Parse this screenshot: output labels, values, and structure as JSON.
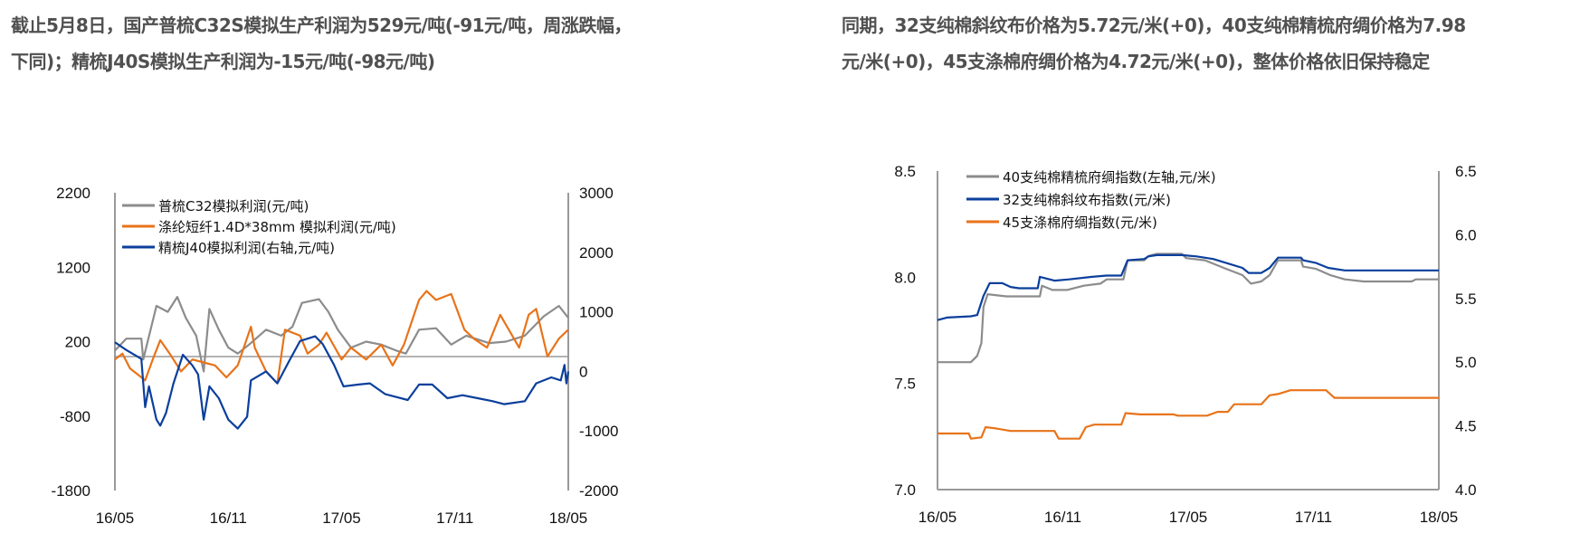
{
  "captions": {
    "left_line1": "截止5月8日，国产普梳C32S模拟生产利润为529元/吨(-91元/吨，周涨跌幅，",
    "left_line2": "下同)；精梳J40S模拟生产利润为-15元/吨(-98元/吨)",
    "right_line1": "同期，32支纯棉斜纹布价格为5.72元/米(+0)，40支纯棉精梳府绸价格为7.98",
    "right_line2": "元/米(+0)，45支涤棉府绸价格为4.72元/米(+0)，整体价格依旧保持稳定"
  },
  "chart_data": [
    {
      "type": "line",
      "title": "",
      "x_unit": "months since 16/05",
      "xlim": [
        0,
        24
      ],
      "x_ticks": [
        {
          "v": 0,
          "label": "16/05"
        },
        {
          "v": 6,
          "label": "16/11"
        },
        {
          "v": 12,
          "label": "17/05"
        },
        {
          "v": 18,
          "label": "17/11"
        },
        {
          "v": 24,
          "label": "18/05"
        }
      ],
      "ylim_left": [
        -1800,
        2200
      ],
      "y_ticks_left": [
        "2200",
        "1200",
        "200",
        "-800",
        "-1800"
      ],
      "ylim_right": [
        -2000,
        3000
      ],
      "y_ticks_right": [
        "3000",
        "2000",
        "1000",
        "0",
        "-1000",
        "-2000"
      ],
      "zero_line_left": 0,
      "legend_position": "top-left",
      "series": [
        {
          "name": "普梳C32模拟利润(元/吨)",
          "axis": "left",
          "color": "#8c8c8c",
          "points": [
            [
              0,
              80
            ],
            [
              0.6,
              240
            ],
            [
              1.4,
              240
            ],
            [
              1.5,
              -40
            ],
            [
              2.2,
              680
            ],
            [
              2.8,
              600
            ],
            [
              3.3,
              800
            ],
            [
              3.75,
              520
            ],
            [
              4.3,
              280
            ],
            [
              4.7,
              -200
            ],
            [
              5.0,
              640
            ],
            [
              5.5,
              360
            ],
            [
              6.0,
              120
            ],
            [
              6.5,
              40
            ],
            [
              7.1,
              160
            ],
            [
              8.0,
              360
            ],
            [
              8.8,
              280
            ],
            [
              9.4,
              400
            ],
            [
              9.9,
              720
            ],
            [
              10.8,
              770
            ],
            [
              11.3,
              600
            ],
            [
              11.8,
              360
            ],
            [
              12.5,
              120
            ],
            [
              13.3,
              200
            ],
            [
              14.1,
              160
            ],
            [
              14.9,
              80
            ],
            [
              15.4,
              40
            ],
            [
              16.1,
              360
            ],
            [
              17.0,
              380
            ],
            [
              17.8,
              160
            ],
            [
              18.6,
              280
            ],
            [
              19.8,
              180
            ],
            [
              20.7,
              200
            ],
            [
              21.7,
              280
            ],
            [
              22.7,
              540
            ],
            [
              23.5,
              680
            ],
            [
              24,
              520
            ]
          ]
        },
        {
          "name": "涤纶短纤1.4D*38mm 模拟利润(元/吨)",
          "axis": "left",
          "color": "#e8731a",
          "points": [
            [
              0,
              -40
            ],
            [
              0.4,
              40
            ],
            [
              0.8,
              -160
            ],
            [
              1.6,
              -320
            ],
            [
              2.0,
              -40
            ],
            [
              2.4,
              220
            ],
            [
              2.9,
              40
            ],
            [
              3.5,
              -200
            ],
            [
              4.1,
              -40
            ],
            [
              4.7,
              -80
            ],
            [
              5.3,
              -120
            ],
            [
              5.9,
              -280
            ],
            [
              6.5,
              -120
            ],
            [
              7.2,
              400
            ],
            [
              7.4,
              120
            ],
            [
              8.0,
              -200
            ],
            [
              8.6,
              -360
            ],
            [
              9.0,
              360
            ],
            [
              9.8,
              280
            ],
            [
              10.2,
              40
            ],
            [
              10.8,
              160
            ],
            [
              11.2,
              320
            ],
            [
              12.0,
              -40
            ],
            [
              12.5,
              120
            ],
            [
              13.3,
              -40
            ],
            [
              14.1,
              160
            ],
            [
              14.7,
              -120
            ],
            [
              15.3,
              160
            ],
            [
              16.1,
              760
            ],
            [
              16.5,
              880
            ],
            [
              17.0,
              760
            ],
            [
              17.8,
              840
            ],
            [
              18.5,
              360
            ],
            [
              19.0,
              240
            ],
            [
              19.7,
              120
            ],
            [
              20.4,
              560
            ],
            [
              21.4,
              120
            ],
            [
              21.9,
              560
            ],
            [
              22.3,
              640
            ],
            [
              22.9,
              0
            ],
            [
              23.5,
              240
            ],
            [
              24,
              360
            ]
          ]
        },
        {
          "name": "精梳J40模拟利润(右轴,元/吨)",
          "axis": "right",
          "color": "#0b3f9c",
          "points": [
            [
              0,
              490
            ],
            [
              0.6,
              360
            ],
            [
              1.4,
              210
            ],
            [
              1.6,
              -600
            ],
            [
              1.8,
              -250
            ],
            [
              2.2,
              -810
            ],
            [
              2.4,
              -910
            ],
            [
              2.7,
              -700
            ],
            [
              3.1,
              -200
            ],
            [
              3.6,
              280
            ],
            [
              4.1,
              100
            ],
            [
              4.4,
              -50
            ],
            [
              4.7,
              -810
            ],
            [
              5.0,
              -250
            ],
            [
              5.5,
              -450
            ],
            [
              6.0,
              -810
            ],
            [
              6.5,
              -960
            ],
            [
              7.0,
              -760
            ],
            [
              7.2,
              -150
            ],
            [
              8.0,
              0
            ],
            [
              8.6,
              -200
            ],
            [
              9.2,
              160
            ],
            [
              9.8,
              510
            ],
            [
              10.6,
              590
            ],
            [
              11.0,
              460
            ],
            [
              11.6,
              110
            ],
            [
              12.1,
              -250
            ],
            [
              12.9,
              -220
            ],
            [
              13.5,
              -200
            ],
            [
              14.3,
              -380
            ],
            [
              14.9,
              -430
            ],
            [
              15.5,
              -480
            ],
            [
              16.1,
              -220
            ],
            [
              16.8,
              -220
            ],
            [
              17.6,
              -450
            ],
            [
              18.4,
              -400
            ],
            [
              19.2,
              -450
            ],
            [
              20.0,
              -500
            ],
            [
              20.6,
              -550
            ],
            [
              21.7,
              -500
            ],
            [
              22.3,
              -200
            ],
            [
              23.1,
              -100
            ],
            [
              23.6,
              -150
            ],
            [
              23.8,
              110
            ],
            [
              23.9,
              -200
            ],
            [
              24,
              0
            ]
          ]
        }
      ]
    },
    {
      "type": "line",
      "title": "",
      "x_unit": "months since 16/05",
      "xlim": [
        0,
        24
      ],
      "x_ticks": [
        {
          "v": 0,
          "label": "16/05"
        },
        {
          "v": 6,
          "label": "16/11"
        },
        {
          "v": 12,
          "label": "17/05"
        },
        {
          "v": 18,
          "label": "17/11"
        },
        {
          "v": 24,
          "label": "18/05"
        }
      ],
      "ylim_left": [
        7.0,
        8.5
      ],
      "y_ticks_left": [
        "8.5",
        "8.0",
        "7.5",
        "7.0"
      ],
      "ylim_right": [
        4.0,
        6.5
      ],
      "y_ticks_right": [
        "6.5",
        "6.0",
        "5.5",
        "5.0",
        "4.5",
        "4.0"
      ],
      "legend_position": "top-left",
      "series": [
        {
          "name": "40支纯棉精梳府绸指数(左轴,元/米)",
          "axis": "left",
          "color": "#8c8c8c",
          "points": [
            [
              0,
              7.6
            ],
            [
              1.6,
              7.6
            ],
            [
              1.9,
              7.63
            ],
            [
              2.1,
              7.69
            ],
            [
              2.2,
              7.86
            ],
            [
              2.4,
              7.92
            ],
            [
              3.3,
              7.91
            ],
            [
              3.5,
              7.91
            ],
            [
              4.9,
              7.91
            ],
            [
              5.0,
              7.96
            ],
            [
              5.5,
              7.94
            ],
            [
              6.2,
              7.94
            ],
            [
              7.0,
              7.96
            ],
            [
              7.8,
              7.97
            ],
            [
              8.1,
              7.99
            ],
            [
              8.9,
              7.99
            ],
            [
              9.1,
              8.08
            ],
            [
              9.9,
              8.08
            ],
            [
              10.1,
              8.1
            ],
            [
              10.5,
              8.11
            ],
            [
              11.7,
              8.11
            ],
            [
              11.9,
              8.09
            ],
            [
              12.8,
              8.08
            ],
            [
              13.8,
              8.04
            ],
            [
              14.6,
              8.01
            ],
            [
              15.0,
              7.97
            ],
            [
              15.5,
              7.98
            ],
            [
              15.9,
              8.01
            ],
            [
              16.3,
              8.08
            ],
            [
              17.4,
              8.08
            ],
            [
              17.5,
              8.05
            ],
            [
              18.1,
              8.04
            ],
            [
              18.8,
              8.01
            ],
            [
              19.5,
              7.99
            ],
            [
              20.4,
              7.98
            ],
            [
              22.7,
              7.98
            ],
            [
              22.9,
              7.99
            ],
            [
              24,
              7.99
            ]
          ]
        },
        {
          "name": "32支纯棉斜纹布指数(元/米)",
          "axis": "right",
          "color": "#0b3f9c",
          "points": [
            [
              0,
              5.33
            ],
            [
              0.45,
              5.35
            ],
            [
              1.6,
              5.36
            ],
            [
              1.9,
              5.37
            ],
            [
              2.2,
              5.52
            ],
            [
              2.5,
              5.62
            ],
            [
              3.1,
              5.62
            ],
            [
              3.5,
              5.59
            ],
            [
              3.9,
              5.58
            ],
            [
              4.8,
              5.58
            ],
            [
              4.9,
              5.67
            ],
            [
              5.6,
              5.64
            ],
            [
              6.3,
              5.65
            ],
            [
              7.4,
              5.67
            ],
            [
              8.1,
              5.68
            ],
            [
              8.8,
              5.68
            ],
            [
              9.1,
              5.8
            ],
            [
              9.9,
              5.81
            ],
            [
              10.1,
              5.83
            ],
            [
              10.5,
              5.84
            ],
            [
              11.7,
              5.84
            ],
            [
              12.4,
              5.83
            ],
            [
              13.2,
              5.81
            ],
            [
              14.0,
              5.77
            ],
            [
              14.6,
              5.74
            ],
            [
              14.9,
              5.7
            ],
            [
              15.5,
              5.7
            ],
            [
              15.9,
              5.74
            ],
            [
              16.3,
              5.82
            ],
            [
              17.4,
              5.82
            ],
            [
              17.5,
              5.8
            ],
            [
              18.1,
              5.78
            ],
            [
              18.7,
              5.74
            ],
            [
              19.5,
              5.72
            ],
            [
              24,
              5.72
            ]
          ]
        },
        {
          "name": "45支涤棉府绸指数(元/米)",
          "axis": "right",
          "color": "#e8731a",
          "points": [
            [
              0,
              4.44
            ],
            [
              1.5,
              4.44
            ],
            [
              1.6,
              4.4
            ],
            [
              2.1,
              4.41
            ],
            [
              2.3,
              4.49
            ],
            [
              2.8,
              4.48
            ],
            [
              3.5,
              4.46
            ],
            [
              5.6,
              4.46
            ],
            [
              5.8,
              4.4
            ],
            [
              6.8,
              4.4
            ],
            [
              7.1,
              4.49
            ],
            [
              7.5,
              4.51
            ],
            [
              8.8,
              4.51
            ],
            [
              9.0,
              4.6
            ],
            [
              9.7,
              4.59
            ],
            [
              11.3,
              4.59
            ],
            [
              11.5,
              4.58
            ],
            [
              12.9,
              4.58
            ],
            [
              13.4,
              4.61
            ],
            [
              13.9,
              4.61
            ],
            [
              14.2,
              4.67
            ],
            [
              15.5,
              4.67
            ],
            [
              15.9,
              4.74
            ],
            [
              16.3,
              4.75
            ],
            [
              16.9,
              4.78
            ],
            [
              18.6,
              4.78
            ],
            [
              19.0,
              4.72
            ],
            [
              24,
              4.72
            ]
          ]
        }
      ]
    }
  ]
}
